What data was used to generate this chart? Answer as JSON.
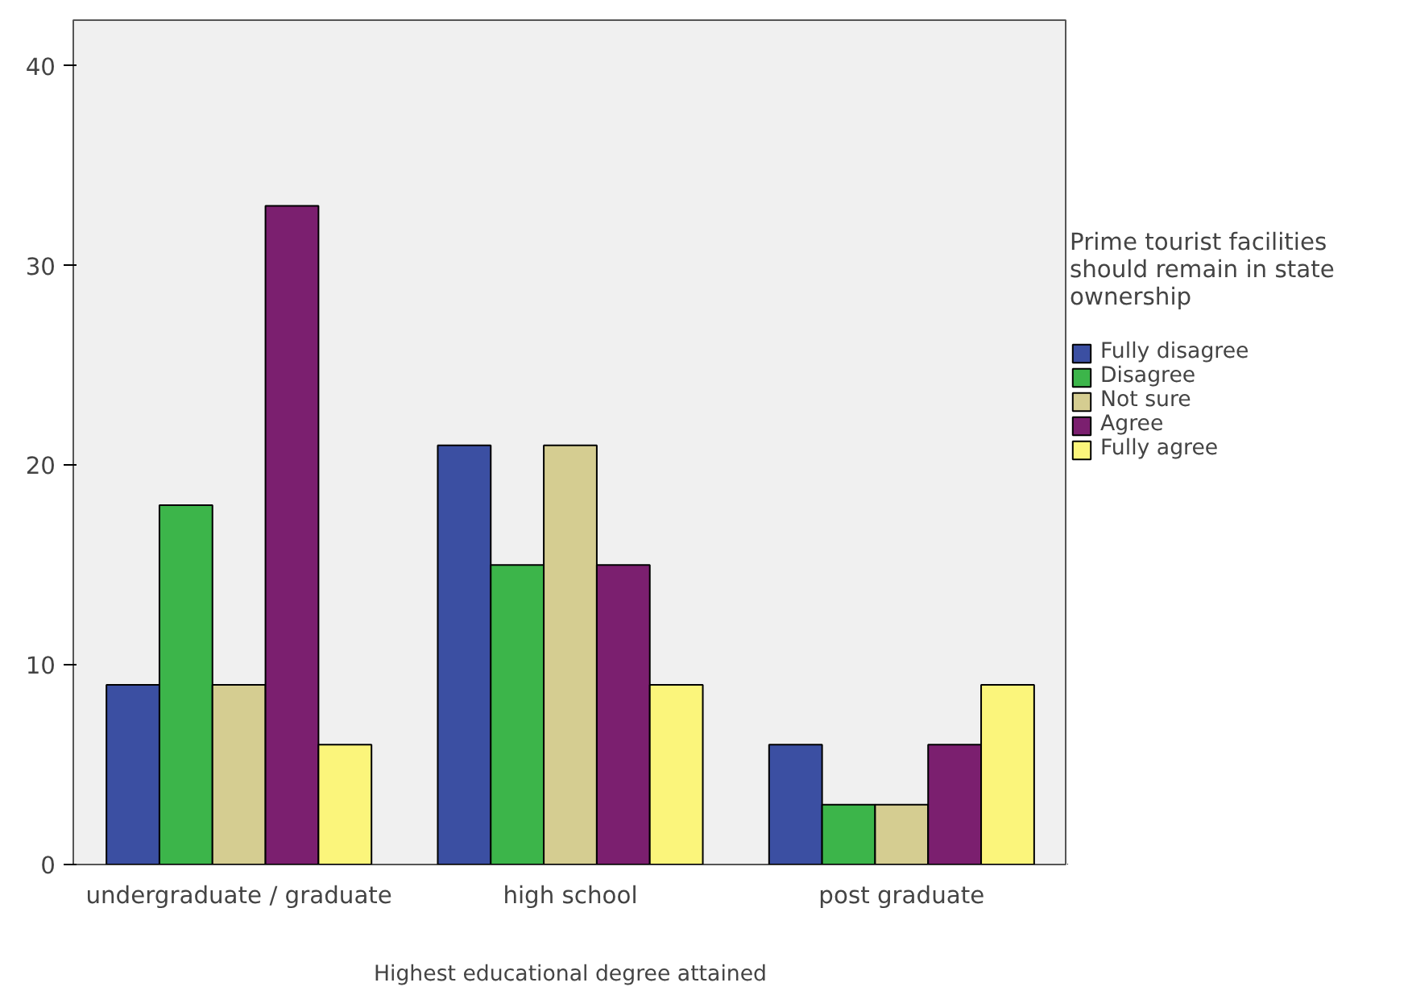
{
  "chart_data": {
    "type": "bar",
    "xlabel": "Highest educational degree attained",
    "legend_title": "Prime tourist facilities should remain in state ownership",
    "categories": [
      "undergraduate / graduate",
      "high school",
      "post graduate"
    ],
    "series": [
      {
        "name": "Fully disagree",
        "color": "#3b4fa2",
        "values": [
          9,
          21,
          6
        ]
      },
      {
        "name": "Disagree",
        "color": "#3cb54a",
        "values": [
          18,
          15,
          3
        ]
      },
      {
        "name": "Not sure",
        "color": "#d5cd91",
        "values": [
          9,
          21,
          3
        ]
      },
      {
        "name": "Agree",
        "color": "#7b1f6f",
        "values": [
          33,
          15,
          6
        ]
      },
      {
        "name": "Fully agree",
        "color": "#fbf57b",
        "values": [
          6,
          9,
          9
        ]
      }
    ],
    "ylim": [
      0,
      42.3
    ],
    "yticks": [
      0,
      10,
      20,
      30,
      40
    ],
    "grid": false,
    "legend": "right"
  }
}
